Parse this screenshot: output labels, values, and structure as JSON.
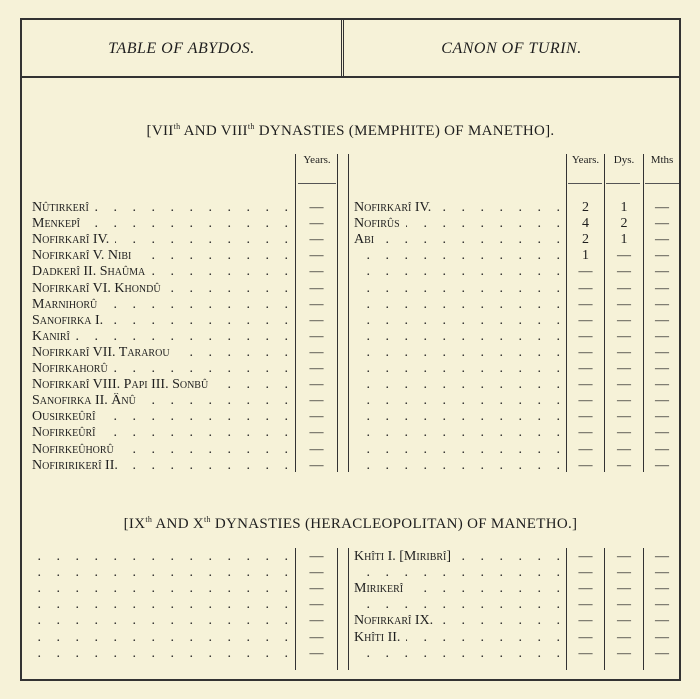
{
  "header": {
    "left": "TABLE OF ABYDOS.",
    "right": "CANON OF TURIN."
  },
  "section1": {
    "title_a": "[VII",
    "sup_a": "th",
    "title_b": " AND VIII",
    "sup_b": "th",
    "title_c": " DYNASTIES (MEMPHITE) OF MANETHO].",
    "col_years": "Years.",
    "col_years_r": "Years.",
    "col_days": "Dys.",
    "col_months": "Mths",
    "abydos": [
      {
        "name": "Nûtirkerî",
        "years": "—"
      },
      {
        "name": "Menkepî",
        "years": "—"
      },
      {
        "name": "Nofirkarî IV.",
        "years": "—"
      },
      {
        "name": "Nofirkarî V. Nibi",
        "years": "—"
      },
      {
        "name": "Dadkerî II. Shaûma",
        "years": "—"
      },
      {
        "name": "Nofirkarî VI. Khondû",
        "years": "—"
      },
      {
        "name": "Marnihorû",
        "years": "—"
      },
      {
        "name": "Sanofirka I.",
        "years": "—"
      },
      {
        "name": "Kanirî",
        "years": "—"
      },
      {
        "name": "Nofirkarî VII. Tararou",
        "years": "—"
      },
      {
        "name": "Nofirkahorû",
        "years": "—"
      },
      {
        "name": "Nofirkarî VIII. Papi III. Sonbû",
        "years": "—"
      },
      {
        "name": "Sanofirka II. Ânû",
        "years": "—"
      },
      {
        "name": "Ousirkeûrî",
        "years": "—"
      },
      {
        "name": "Nofirkeûrî",
        "years": "—"
      },
      {
        "name": "Nofirkeûhorû",
        "years": "—"
      },
      {
        "name": "Nofiririkerî II.",
        "years": "—"
      }
    ],
    "turin": [
      {
        "name": "Nofirkarî IV.",
        "years": "2",
        "days": "1",
        "months": "—"
      },
      {
        "name": "Nofirûs",
        "years": "4",
        "days": "2",
        "months": "—"
      },
      {
        "name": "Abi",
        "years": "2",
        "days": "1",
        "months": "—"
      },
      {
        "name": "",
        "years": "1",
        "days": "—",
        "months": "—"
      },
      {
        "name": "",
        "years": "—",
        "days": "—",
        "months": "—"
      },
      {
        "name": "",
        "years": "—",
        "days": "—",
        "months": "—"
      },
      {
        "name": "",
        "years": "—",
        "days": "—",
        "months": "—"
      },
      {
        "name": "",
        "years": "—",
        "days": "—",
        "months": "—"
      },
      {
        "name": "",
        "years": "—",
        "days": "—",
        "months": "—"
      },
      {
        "name": "",
        "years": "—",
        "days": "—",
        "months": "—"
      },
      {
        "name": "",
        "years": "—",
        "days": "—",
        "months": "—"
      },
      {
        "name": "",
        "years": "—",
        "days": "—",
        "months": "—"
      },
      {
        "name": "",
        "years": "—",
        "days": "—",
        "months": "—"
      },
      {
        "name": "",
        "years": "—",
        "days": "—",
        "months": "—"
      },
      {
        "name": "",
        "years": "—",
        "days": "—",
        "months": "—"
      },
      {
        "name": "",
        "years": "—",
        "days": "—",
        "months": "—"
      },
      {
        "name": "",
        "years": "—",
        "days": "—",
        "months": "—"
      }
    ]
  },
  "section2": {
    "title_a": "[IX",
    "sup_a": "th",
    "title_b": " AND X",
    "sup_b": "th",
    "title_c": " DYNASTIES (HERACLEOPOLITAN) OF MANETHO.]",
    "abydos": [
      {
        "name": "",
        "years": "—"
      },
      {
        "name": "",
        "years": "—"
      },
      {
        "name": "",
        "years": "—"
      },
      {
        "name": "",
        "years": "—"
      },
      {
        "name": "",
        "years": "—"
      },
      {
        "name": "",
        "years": "—"
      },
      {
        "name": "",
        "years": "—"
      }
    ],
    "turin": [
      {
        "name": "Khîti I. [Miribrî]",
        "years": "—",
        "days": "—",
        "months": "—"
      },
      {
        "name": "",
        "years": "—",
        "days": "—",
        "months": "—"
      },
      {
        "name": "Mirikerî",
        "years": "—",
        "days": "—",
        "months": "—"
      },
      {
        "name": "",
        "years": "—",
        "days": "—",
        "months": "—"
      },
      {
        "name": "Nofirkarî IX.",
        "years": "—",
        "days": "—",
        "months": "—"
      },
      {
        "name": "Khîti II.",
        "years": "—",
        "days": "—",
        "months": "—"
      },
      {
        "name": "",
        "years": "—",
        "days": "—",
        "months": "—"
      }
    ]
  }
}
